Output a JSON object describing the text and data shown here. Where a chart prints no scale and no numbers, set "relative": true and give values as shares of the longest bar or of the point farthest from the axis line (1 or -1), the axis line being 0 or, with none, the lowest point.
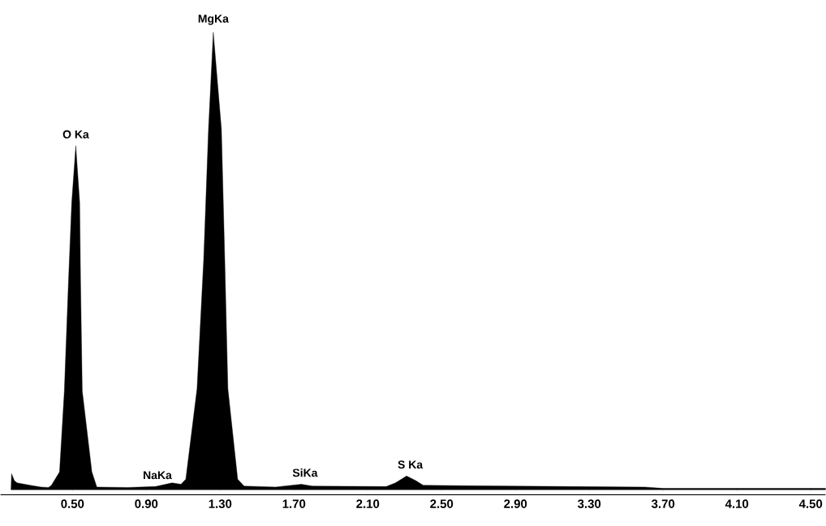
{
  "chart_data": {
    "type": "area",
    "relative": true,
    "color": "#000000",
    "x": [
      0.167,
      0.17,
      0.185,
      0.2,
      0.27,
      0.33,
      0.37,
      0.386,
      0.412,
      0.43,
      0.456,
      0.478,
      0.496,
      0.518,
      0.539,
      0.544,
      0.553,
      0.605,
      0.632,
      0.8,
      0.95,
      1.04,
      1.088,
      1.114,
      1.175,
      1.211,
      1.237,
      1.263,
      1.307,
      1.325,
      1.342,
      1.395,
      1.43,
      1.6,
      1.74,
      1.8,
      2.2,
      2.25,
      2.31,
      2.36,
      2.4,
      2.6,
      3.2,
      3.6,
      3.7,
      4.58
    ],
    "values": [
      0,
      0.035,
      0.02,
      0.015,
      0.01,
      0.006,
      0.005,
      0.01,
      0.027,
      0.039,
      0.216,
      0.451,
      0.628,
      0.752,
      0.628,
      0.451,
      0.216,
      0.039,
      0.006,
      0.005,
      0.007,
      0.015,
      0.012,
      0.023,
      0.221,
      0.504,
      0.788,
      1,
      0.788,
      0.504,
      0.221,
      0.023,
      0.008,
      0.006,
      0.012,
      0.008,
      0.007,
      0.015,
      0.03,
      0.02,
      0.01,
      0.009,
      0.007,
      0.006,
      0.003,
      0.003
    ],
    "xlim": [
      0.11,
      4.58
    ],
    "xticks": [
      {
        "value": 0.5,
        "label": "0.50"
      },
      {
        "value": 0.9,
        "label": "0.90"
      },
      {
        "value": 1.3,
        "label": "1.30"
      },
      {
        "value": 1.7,
        "label": "1.70"
      },
      {
        "value": 2.1,
        "label": "2.10"
      },
      {
        "value": 2.5,
        "label": "2.50"
      },
      {
        "value": 2.9,
        "label": "2.90"
      },
      {
        "value": 3.3,
        "label": "3.30"
      },
      {
        "value": 3.7,
        "label": "3.70"
      },
      {
        "value": 4.1,
        "label": "4.10"
      },
      {
        "value": 4.5,
        "label": "4.50"
      }
    ],
    "annotations": [
      {
        "text": "O Ka",
        "x": 0.518,
        "y": 0.752
      },
      {
        "text": "MgKa",
        "x": 1.263,
        "y": 1
      },
      {
        "text": "NaKa",
        "x": 0.96,
        "y": 0.007
      },
      {
        "text": "SiKa",
        "x": 1.76,
        "y": 0.012
      },
      {
        "text": "S Ka",
        "x": 2.33,
        "y": 0.03
      }
    ]
  }
}
